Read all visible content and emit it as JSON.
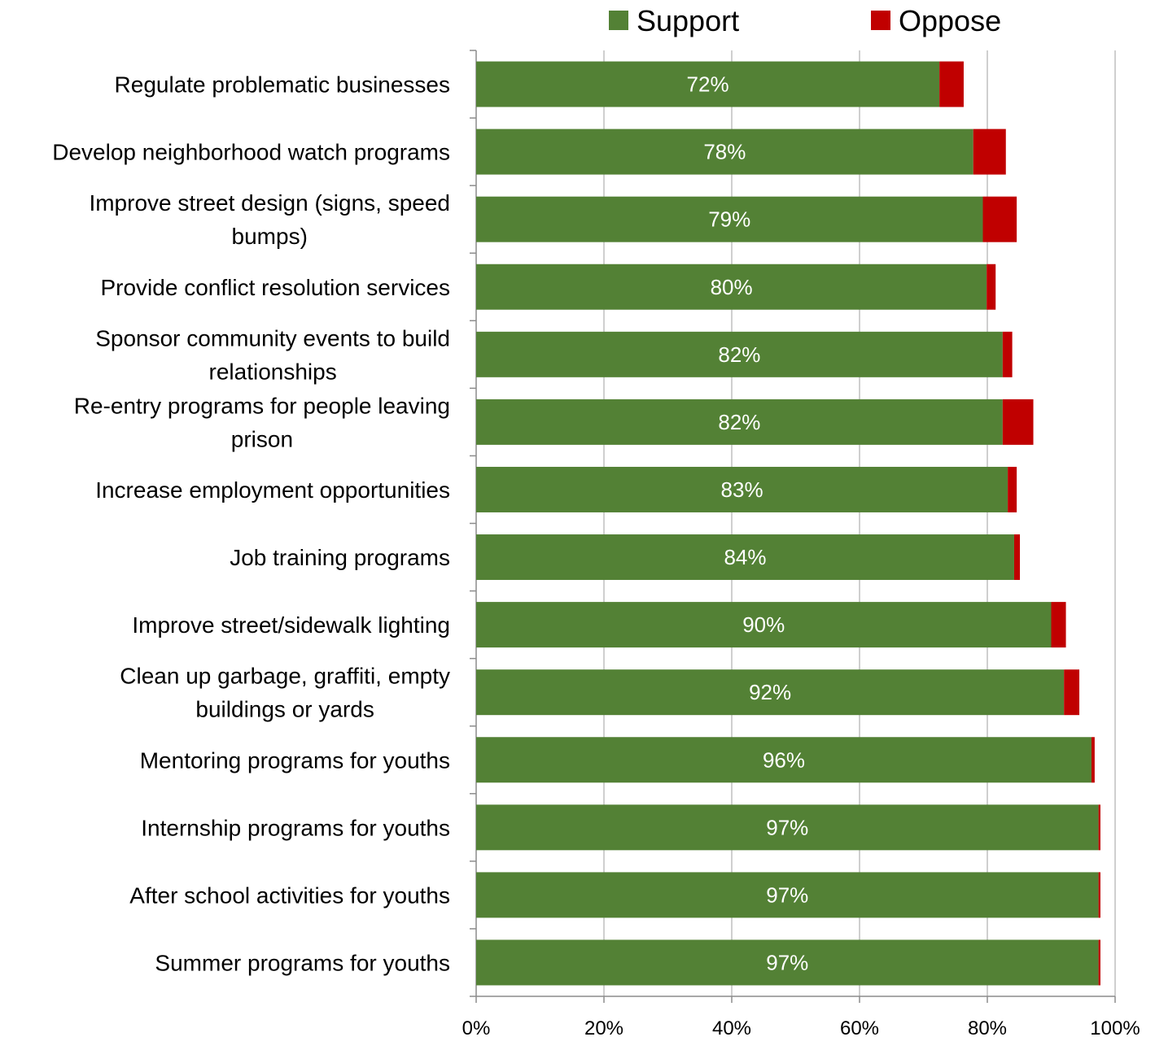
{
  "chart_data": {
    "type": "bar",
    "orientation": "horizontal",
    "stacked": true,
    "categories": [
      "Regulate problematic businesses",
      "Develop neighborhood watch programs",
      "Improve street design (signs, speed bumps)",
      "Provide conflict resolution services",
      "Sponsor community events to build relationships",
      "Re-entry programs for people leaving prison",
      "Increase employment opportunities",
      "Job training programs",
      "Improve street/sidewalk lighting",
      "Clean up garbage, graffiti, empty buildings or yards",
      "Mentoring programs for youths",
      "Internship programs for youths",
      "After school activities for youths",
      "Summer programs for youths"
    ],
    "category_lines": [
      [
        "Regulate problematic businesses"
      ],
      [
        "Develop neighborhood watch programs"
      ],
      [
        "Improve street design (signs, speed",
        "bumps)"
      ],
      [
        "Provide conflict resolution services"
      ],
      [
        "Sponsor community events to build",
        "relationships"
      ],
      [
        "Re-entry programs for people leaving",
        "prison"
      ],
      [
        "Increase employment opportunities"
      ],
      [
        "Job training programs"
      ],
      [
        "Improve street/sidewalk lighting"
      ],
      [
        "Clean up garbage, graffiti, empty",
        "buildings or yards"
      ],
      [
        "Mentoring programs for youths"
      ],
      [
        "Internship programs for youths"
      ],
      [
        "After school activities for youths"
      ],
      [
        "Summer programs for youths"
      ]
    ],
    "series": [
      {
        "name": "Support",
        "color": "#538135",
        "values": [
          72.5,
          77.8,
          79.3,
          79.9,
          82.4,
          82.4,
          83.2,
          84.2,
          90.0,
          92.0,
          96.3,
          97.4,
          97.4,
          97.4
        ],
        "labels": [
          "72%",
          "78%",
          "79%",
          "80%",
          "82%",
          "82%",
          "83%",
          "84%",
          "90%",
          "92%",
          "96%",
          "97%",
          "97%",
          "97%"
        ]
      },
      {
        "name": "Oppose",
        "color": "#C00000",
        "values": [
          3.8,
          5.1,
          5.3,
          1.4,
          1.5,
          4.8,
          1.4,
          0.9,
          2.3,
          2.4,
          0.5,
          0.3,
          0.3,
          0.3
        ]
      }
    ],
    "x_ticks": [
      "0%",
      "20%",
      "40%",
      "60%",
      "80%",
      "100%"
    ],
    "xlim": [
      0,
      100
    ],
    "grid": true,
    "legend": "top"
  }
}
